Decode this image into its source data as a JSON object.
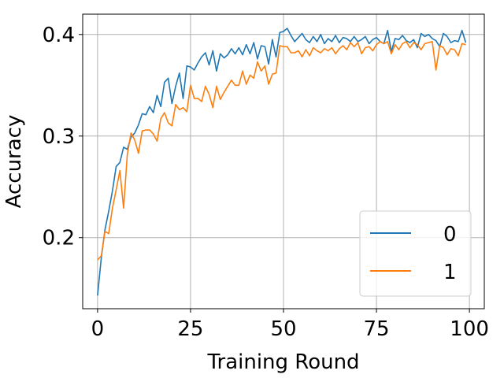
{
  "chart_data": {
    "type": "line",
    "xlabel": "Training Round",
    "ylabel": "Accuracy",
    "xlim": [
      -4,
      104
    ],
    "ylim": [
      0.13,
      0.42
    ],
    "x_ticks": [
      0,
      25,
      50,
      75,
      100
    ],
    "x_tick_labels": [
      "0",
      "25",
      "50",
      "75",
      "100"
    ],
    "y_ticks": [
      0.2,
      0.3,
      0.4
    ],
    "y_tick_labels": [
      "0.2",
      "0.3",
      "0.4"
    ],
    "grid": true,
    "legend_position": "lower-right",
    "x": [
      0,
      1,
      2,
      3,
      4,
      5,
      6,
      7,
      8,
      9,
      10,
      11,
      12,
      13,
      14,
      15,
      16,
      17,
      18,
      19,
      20,
      21,
      22,
      23,
      24,
      25,
      26,
      27,
      28,
      29,
      30,
      31,
      32,
      33,
      34,
      35,
      36,
      37,
      38,
      39,
      40,
      41,
      42,
      43,
      44,
      45,
      46,
      47,
      48,
      49,
      50,
      51,
      52,
      53,
      54,
      55,
      56,
      57,
      58,
      59,
      60,
      61,
      62,
      63,
      64,
      65,
      66,
      67,
      68,
      69,
      70,
      71,
      72,
      73,
      74,
      75,
      76,
      77,
      78,
      79,
      80,
      81,
      82,
      83,
      84,
      85,
      86,
      87,
      88,
      89,
      90,
      91,
      92,
      93,
      94,
      95,
      96,
      97,
      98,
      99
    ],
    "series": [
      {
        "name": "0",
        "color": "#1f77b4",
        "values": [
          0.143,
          0.18,
          0.208,
          0.226,
          0.246,
          0.27,
          0.274,
          0.289,
          0.287,
          0.299,
          0.303,
          0.311,
          0.322,
          0.321,
          0.329,
          0.323,
          0.34,
          0.329,
          0.353,
          0.357,
          0.332,
          0.349,
          0.362,
          0.337,
          0.369,
          0.368,
          0.365,
          0.372,
          0.378,
          0.382,
          0.37,
          0.384,
          0.364,
          0.381,
          0.377,
          0.38,
          0.386,
          0.381,
          0.387,
          0.38,
          0.39,
          0.381,
          0.392,
          0.376,
          0.389,
          0.388,
          0.371,
          0.395,
          0.378,
          0.402,
          0.403,
          0.406,
          0.399,
          0.393,
          0.397,
          0.401,
          0.395,
          0.392,
          0.398,
          0.393,
          0.4,
          0.391,
          0.396,
          0.393,
          0.399,
          0.392,
          0.397,
          0.396,
          0.393,
          0.398,
          0.393,
          0.395,
          0.398,
          0.391,
          0.395,
          0.397,
          0.393,
          0.391,
          0.404,
          0.383,
          0.396,
          0.395,
          0.399,
          0.394,
          0.392,
          0.395,
          0.387,
          0.401,
          0.398,
          0.4,
          0.396,
          0.394,
          0.388,
          0.401,
          0.398,
          0.392,
          0.394,
          0.393,
          0.404,
          0.392
        ]
      },
      {
        "name": "1",
        "color": "#ff7f0e",
        "values": [
          0.178,
          0.182,
          0.206,
          0.204,
          0.229,
          0.247,
          0.266,
          0.229,
          0.282,
          0.303,
          0.296,
          0.283,
          0.305,
          0.306,
          0.306,
          0.302,
          0.295,
          0.317,
          0.323,
          0.313,
          0.31,
          0.331,
          0.326,
          0.328,
          0.324,
          0.35,
          0.337,
          0.337,
          0.334,
          0.349,
          0.341,
          0.328,
          0.349,
          0.336,
          0.343,
          0.349,
          0.355,
          0.35,
          0.35,
          0.364,
          0.351,
          0.36,
          0.357,
          0.373,
          0.364,
          0.369,
          0.351,
          0.361,
          0.362,
          0.389,
          0.388,
          0.388,
          0.382,
          0.382,
          0.384,
          0.378,
          0.385,
          0.379,
          0.387,
          0.384,
          0.382,
          0.386,
          0.384,
          0.387,
          0.381,
          0.386,
          0.389,
          0.385,
          0.392,
          0.388,
          0.392,
          0.381,
          0.387,
          0.388,
          0.384,
          0.39,
          0.393,
          0.391,
          0.393,
          0.381,
          0.39,
          0.385,
          0.391,
          0.393,
          0.387,
          0.392,
          0.39,
          0.385,
          0.391,
          0.392,
          0.393,
          0.365,
          0.389,
          0.387,
          0.38,
          0.386,
          0.385,
          0.379,
          0.391,
          0.39
        ]
      }
    ]
  }
}
